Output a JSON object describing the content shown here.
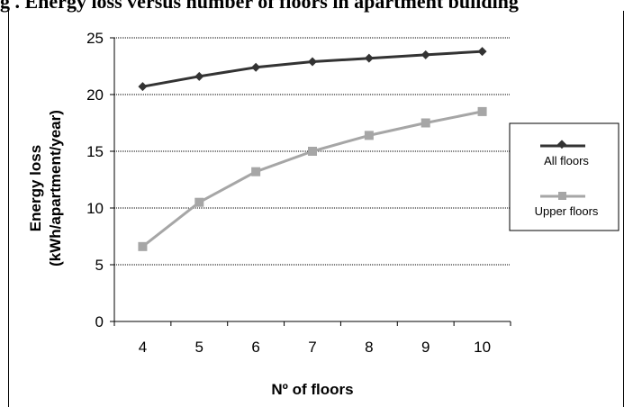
{
  "header_fragment": "g . Energy loss versus number of floors in apartment building",
  "chart_data": {
    "type": "line",
    "x": [
      4,
      5,
      6,
      7,
      8,
      9,
      10
    ],
    "categories": [
      "4",
      "5",
      "6",
      "7",
      "8",
      "9",
      "10"
    ],
    "series": [
      {
        "name": "All floors",
        "values": [
          20.7,
          21.6,
          22.4,
          22.9,
          23.2,
          23.5,
          23.8
        ],
        "color": "#333333",
        "marker": "diamond"
      },
      {
        "name": "Upper floors",
        "values": [
          6.6,
          10.5,
          13.2,
          15.0,
          16.4,
          17.5,
          18.5
        ],
        "color": "#a6a6a6",
        "marker": "square"
      }
    ],
    "yticks": [
      "0",
      "5",
      "10",
      "15",
      "20",
      "25"
    ],
    "ylim": [
      0,
      25
    ],
    "xlabel": "Nº of floors",
    "ylabel_line1": "Energy loss",
    "ylabel_line2": "(kWh/apartment/year)",
    "grid": true,
    "legend_position": "right"
  }
}
